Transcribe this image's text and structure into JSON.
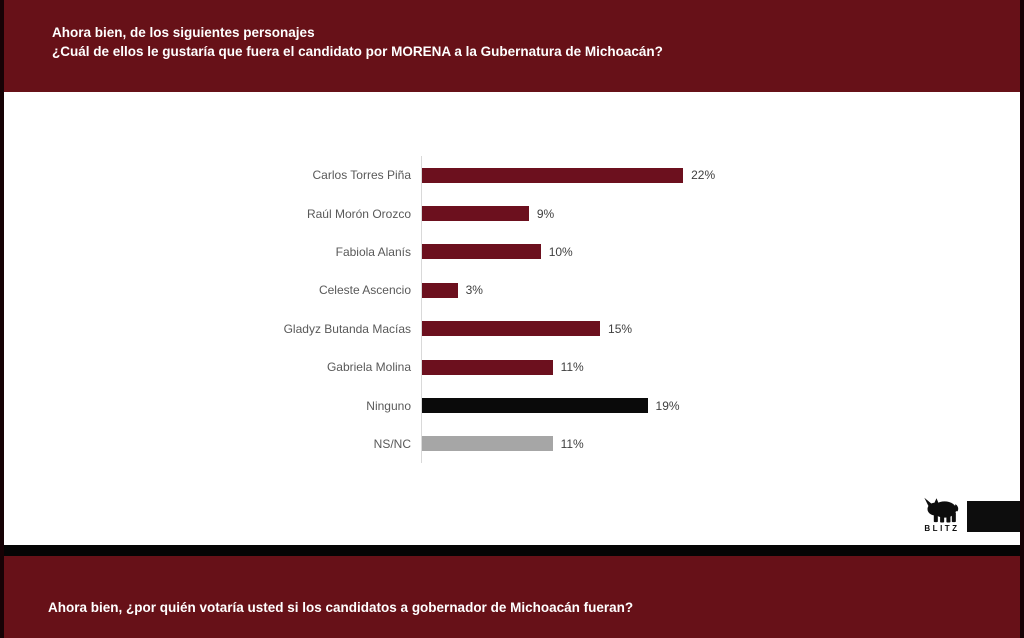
{
  "header": {
    "line1": "Ahora bien, de los siguientes personajes",
    "line2": "¿Cuál de ellos le gustaría que fuera el candidato por MORENA a la Gubernatura de Michoacán?"
  },
  "footer": {
    "question": "Ahora bien, ¿por quién votaría usted si los candidatos a gobernador de Michoacán fueran?"
  },
  "logo": {
    "brand": "BLITZ",
    "icon": "rhino-icon"
  },
  "colors": {
    "maroon_panel": "#671118",
    "bar_maroon": "#6C101E",
    "bar_black": "#0A0A0A",
    "bar_gray": "#A6A6A6",
    "edge": "#160205",
    "axis": "#D9D9D9",
    "label_text": "#595959",
    "value_text": "#3F3F3F"
  },
  "chart_data": {
    "type": "bar",
    "orientation": "horizontal",
    "title": "",
    "xlabel": "",
    "ylabel": "",
    "grid": "off",
    "legend": "none",
    "xlim": [
      0,
      25
    ],
    "categories": [
      "Carlos Torres Piña",
      "Raúl Morón Orozco",
      "Fabiola Alanís",
      "Celeste Ascencio",
      "Gladyz Butanda Macías",
      "Gabriela Molina",
      "Ninguno",
      "NS/NC"
    ],
    "values": [
      22,
      9,
      10,
      3,
      15,
      11,
      19,
      11
    ],
    "value_labels": [
      "22%",
      "9%",
      "10%",
      "3%",
      "15%",
      "11%",
      "19%",
      "11%"
    ],
    "bar_colors": [
      "maroon",
      "maroon",
      "maroon",
      "maroon",
      "maroon",
      "maroon",
      "black",
      "gray"
    ],
    "value_label_position": "end-of-bar"
  }
}
